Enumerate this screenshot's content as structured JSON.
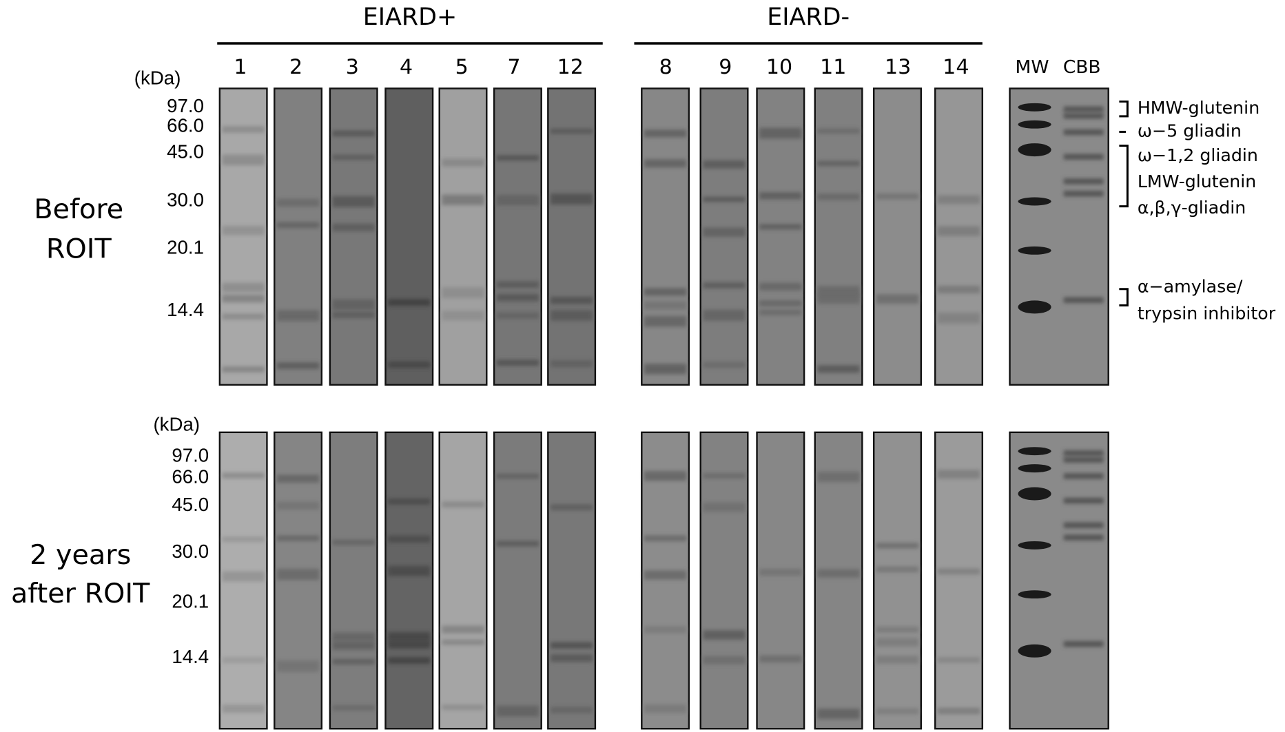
{
  "groups": [
    {
      "label": "EIARD+",
      "lanes": [
        "1",
        "2",
        "3",
        "4",
        "5",
        "7",
        "12"
      ]
    },
    {
      "label": "EIARD-",
      "lanes": [
        "8",
        "9",
        "10",
        "11",
        "13",
        "14"
      ]
    }
  ],
  "reference_lanes": [
    "MW",
    "CBB"
  ],
  "panels": [
    {
      "label_lines": [
        "Before",
        "ROIT"
      ],
      "unit": "(kDa)",
      "markers": [
        "97.0",
        "66.0",
        "45.0",
        "30.0",
        "20.1",
        "14.4"
      ]
    },
    {
      "label_lines": [
        "2 years",
        "after ROIT"
      ],
      "unit": "(kDa)",
      "markers": [
        "97.0",
        "66.0",
        "45.0",
        "30.0",
        "20.1",
        "14.4"
      ]
    }
  ],
  "annotations": [
    "HMW-glutenin",
    "ω−5 gliadin",
    "ω−1,2 gliadin",
    "LMW-glutenin",
    "α,β,γ-gliadin",
    "α−amylase/",
    "trypsin inhibitor"
  ]
}
